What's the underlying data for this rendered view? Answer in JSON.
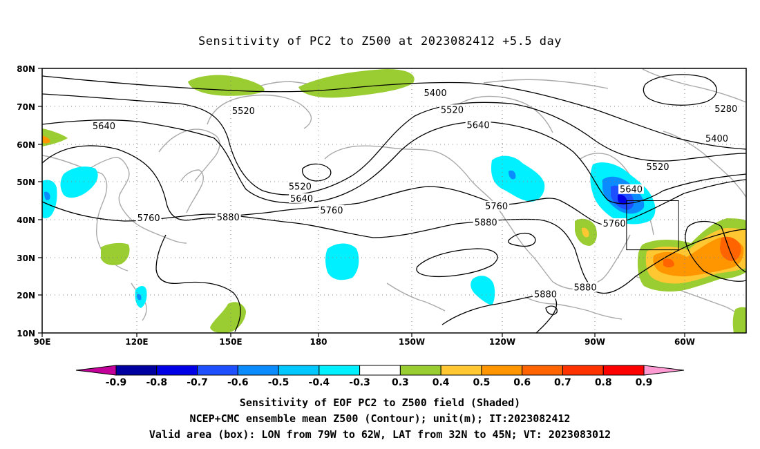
{
  "title": "Sensitivity of PC2 to Z500 at 2023082412 +5.5 day",
  "axes": {
    "lat_labels": [
      "80N",
      "70N",
      "60N",
      "50N",
      "40N",
      "30N",
      "20N",
      "10N"
    ],
    "lon_labels": [
      "90E",
      "120E",
      "150E",
      "180",
      "150W",
      "120W",
      "90W",
      "60W"
    ]
  },
  "contour_labels": [
    {
      "text": "5400",
      "lon": -141.5,
      "lat": 73.2
    },
    {
      "text": "5280",
      "lon": -46.5,
      "lat": 69.0
    },
    {
      "text": "5520",
      "lon": 155.8,
      "lat": 68.5
    },
    {
      "text": "5520",
      "lon": -136.0,
      "lat": 68.8
    },
    {
      "text": "5400",
      "lon": -49.5,
      "lat": 61.2
    },
    {
      "text": "5640",
      "lon": 110.2,
      "lat": 64.5
    },
    {
      "text": "5640",
      "lon": -127.5,
      "lat": 64.7
    },
    {
      "text": "5520",
      "lon": -68.8,
      "lat": 53.7
    },
    {
      "text": "5520",
      "lon": 174.3,
      "lat": 48.5
    },
    {
      "text": "5640",
      "lon": 174.8,
      "lat": 45.3
    },
    {
      "text": "5640",
      "lon": -77.5,
      "lat": 47.7
    },
    {
      "text": "5760",
      "lon": 184.6,
      "lat": 42.2
    },
    {
      "text": "5760",
      "lon": -121.5,
      "lat": 43.3
    },
    {
      "text": "5760",
      "lon": 124.8,
      "lat": 40.2
    },
    {
      "text": "5880",
      "lon": 150.8,
      "lat": 40.3
    },
    {
      "text": "5880",
      "lon": -125.0,
      "lat": 39.0
    },
    {
      "text": "5760",
      "lon": -83.0,
      "lat": 38.7
    },
    {
      "text": "5880",
      "lon": -92.5,
      "lat": 21.8
    },
    {
      "text": "5880",
      "lon": -105.5,
      "lat": 20.0
    }
  ],
  "shading": {
    "levels": [
      "-0.9",
      "-0.8",
      "-0.7",
      "-0.6",
      "-0.5",
      "-0.4",
      "-0.3",
      "0.3",
      "0.4",
      "0.5",
      "0.6",
      "0.7",
      "0.8",
      "0.9"
    ],
    "colors": [
      "#c4009a",
      "#0000a0",
      "#0000e6",
      "#1e50ff",
      "#0a8cff",
      "#00c8ff",
      "#00f0ff",
      "#ffffff",
      "#9acd32",
      "#ffc832",
      "#ff9600",
      "#ff6400",
      "#ff3200",
      "#ff0000",
      "#ff9ad2"
    ]
  },
  "valid_box": {
    "lon_min": -79,
    "lon_max": -62,
    "lat_min": 32,
    "lat_max": 45
  },
  "captions": [
    "Sensitivity of EOF PC2 to Z500 field (Shaded)",
    "NCEP+CMC ensemble mean Z500 (Contour); unit(m); IT:2023082412",
    "Valid area (box): LON from 79W to 62W, LAT from 32N to 45N; VT: 2023083012"
  ]
}
